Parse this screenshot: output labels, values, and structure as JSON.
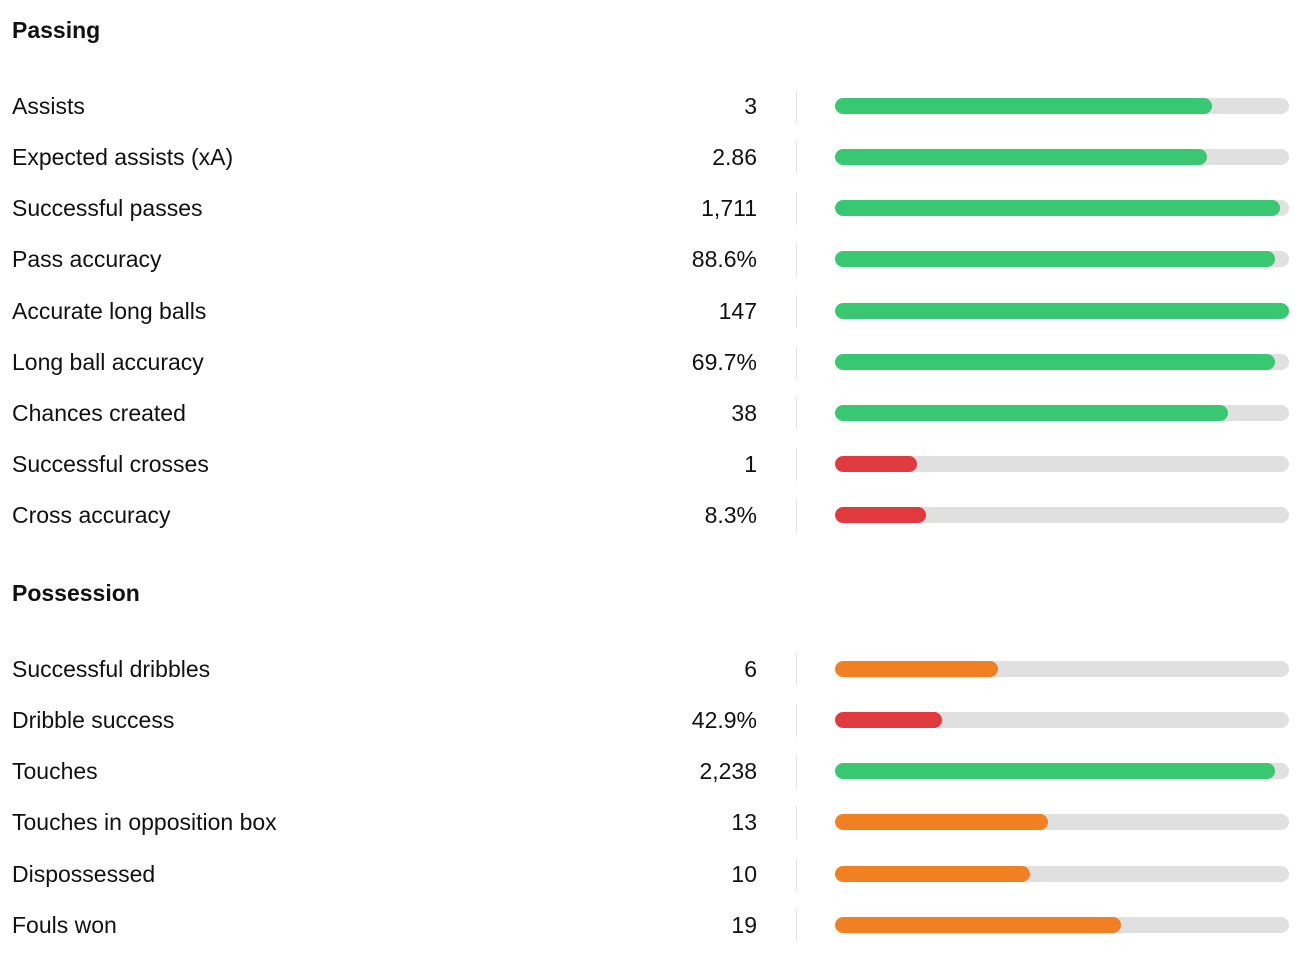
{
  "colors": {
    "good": "#37c871",
    "average": "#f08022",
    "poor": "#e0393e",
    "track": "#e0e0e0"
  },
  "sections": [
    {
      "title": "Passing",
      "stats": [
        {
          "label": "Assists",
          "value": "3",
          "percentile": 0.83,
          "rating": "good"
        },
        {
          "label": "Expected assists (xA)",
          "value": "2.86",
          "percentile": 0.82,
          "rating": "good"
        },
        {
          "label": "Successful passes",
          "value": "1,711",
          "percentile": 0.98,
          "rating": "good"
        },
        {
          "label": "Pass accuracy",
          "value": "88.6%",
          "percentile": 0.97,
          "rating": "good"
        },
        {
          "label": "Accurate long balls",
          "value": "147",
          "percentile": 1.0,
          "rating": "good"
        },
        {
          "label": "Long ball accuracy",
          "value": "69.7%",
          "percentile": 0.97,
          "rating": "good"
        },
        {
          "label": "Chances created",
          "value": "38",
          "percentile": 0.865,
          "rating": "good"
        },
        {
          "label": "Successful crosses",
          "value": "1",
          "percentile": 0.18,
          "rating": "poor"
        },
        {
          "label": "Cross accuracy",
          "value": "8.3%",
          "percentile": 0.2,
          "rating": "poor"
        }
      ]
    },
    {
      "title": "Possession",
      "stats": [
        {
          "label": "Successful dribbles",
          "value": "6",
          "percentile": 0.36,
          "rating": "average"
        },
        {
          "label": "Dribble success",
          "value": "42.9%",
          "percentile": 0.235,
          "rating": "poor"
        },
        {
          "label": "Touches",
          "value": "2,238",
          "percentile": 0.97,
          "rating": "good"
        },
        {
          "label": "Touches in opposition box",
          "value": "13",
          "percentile": 0.47,
          "rating": "average"
        },
        {
          "label": "Dispossessed",
          "value": "10",
          "percentile": 0.43,
          "rating": "average"
        },
        {
          "label": "Fouls won",
          "value": "19",
          "percentile": 0.63,
          "rating": "average"
        }
      ]
    }
  ]
}
